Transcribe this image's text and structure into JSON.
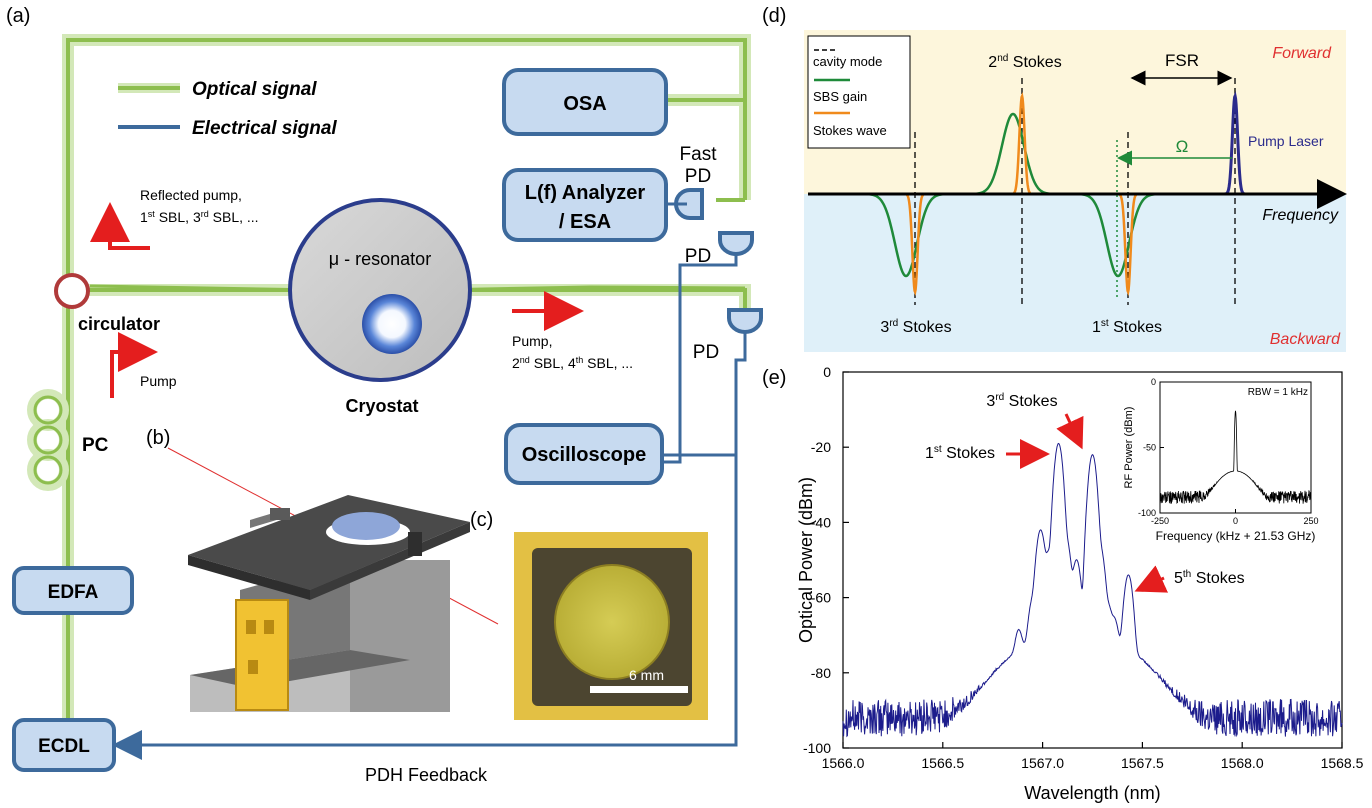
{
  "panel_a": {
    "label": "(a)",
    "legend": {
      "optical": "Optical signal",
      "electrical": "Electrical signal"
    },
    "colors": {
      "optical": "#8dbe4e",
      "optical_glow": "#d3e8b8",
      "electrical": "#3d6a9c",
      "box_fill": "#c7daf0",
      "box_stroke": "#3d6a9c",
      "arrow": "#e41e1e"
    },
    "boxes": {
      "osa": "OSA",
      "analyzer_line1": "L(f) Analyzer",
      "analyzer_line2": "/ ESA",
      "oscilloscope": "Oscilloscope",
      "edfa": "EDFA",
      "ecdl": "ECDL"
    },
    "fast_pd_line1": "Fast",
    "fast_pd_line2": "PD",
    "pd1": "PD",
    "pd2": "PD",
    "reflected_line1": "Reflected pump,",
    "reflected_line2_a": "1",
    "reflected_line2_b": "st",
    "reflected_line2_c": " SBL, 3",
    "reflected_line2_d": "rd",
    "reflected_line2_e": " SBL, ...",
    "pump_left": "Pump",
    "circulator": "circulator",
    "pc": "PC",
    "resonator": "μ - resonator",
    "cryostat": "Cryostat",
    "pump_right_line1": "Pump,",
    "pump_right_a": "2",
    "pump_right_b": "nd",
    "pump_right_c": " SBL, 4",
    "pump_right_d": "th",
    "pump_right_e": " SBL, ...",
    "pdh_feedback": "PDH Feedback"
  },
  "panel_b": {
    "label": "(b)"
  },
  "panel_c": {
    "label": "(c)",
    "scale": "6 mm"
  },
  "panel_d": {
    "label": "(d)",
    "legend": {
      "cavity": "cavity mode",
      "gain": "SBS gain",
      "stokes": "Stokes wave"
    },
    "fsr": "FSR",
    "forward": "Forward",
    "backward": "Backward",
    "frequency": "Frequency",
    "omega": "Ω",
    "pump_laser": "Pump Laser",
    "s2": {
      "n": "2",
      "sup": "nd",
      "t": " Stokes"
    },
    "s3": {
      "n": "3",
      "sup": "rd",
      "t": " Stokes"
    },
    "s1": {
      "n": "1",
      "sup": "st",
      "t": " Stokes"
    },
    "colors": {
      "forward_bg": "#fdf6dc",
      "backward_bg": "#dff0f9",
      "gain": "#1f8a3a",
      "stokes": "#f08a1c",
      "pump": "#2b2b8c",
      "red_text": "#e03030"
    }
  },
  "panel_e": {
    "label": "(e)",
    "annotations": {
      "s1": {
        "n": "1",
        "sup": "st",
        "t": " Stokes"
      },
      "s3": {
        "n": "3",
        "sup": "rd",
        "t": " Stokes"
      },
      "s5": {
        "n": "5",
        "sup": "th",
        "t": " Stokes"
      }
    },
    "inset": {
      "rbw": "RBW = 1 kHz",
      "xlabel": "Frequency (kHz + 21.53 GHz)",
      "ylabel": "RF Power (dBm)"
    }
  },
  "chart_data": [
    {
      "type": "line",
      "title": "",
      "xlabel": "Wavelength (nm)",
      "ylabel": "Optical Power (dBm)",
      "xlim": [
        1566.0,
        1568.5
      ],
      "ylim": [
        -100,
        0
      ],
      "xticks": [
        "1566.0",
        "1566.5",
        "1567.0",
        "1567.5",
        "1568.0",
        "1568.5"
      ],
      "yticks": [
        "0",
        "-20",
        "-40",
        "-60",
        "-80",
        "-100"
      ],
      "grid": false,
      "line_color": "#1c1c8c",
      "noise_floor": -92,
      "noise_amplitude": 5,
      "peaks": [
        {
          "x": 1566.88,
          "y": -70,
          "w": 0.012
        },
        {
          "x": 1566.95,
          "y": -61,
          "w": 0.013
        },
        {
          "x": 1566.99,
          "y": -42,
          "w": 0.013
        },
        {
          "x": 1567.03,
          "y": -48,
          "w": 0.012
        },
        {
          "x": 1567.08,
          "y": -19,
          "w": 0.012
        },
        {
          "x": 1567.12,
          "y": -45,
          "w": 0.013
        },
        {
          "x": 1567.17,
          "y": -50,
          "w": 0.013
        },
        {
          "x": 1567.25,
          "y": -22,
          "w": 0.012
        },
        {
          "x": 1567.29,
          "y": -47,
          "w": 0.013
        },
        {
          "x": 1567.33,
          "y": -63,
          "w": 0.012
        },
        {
          "x": 1567.36,
          "y": -67,
          "w": 0.012
        },
        {
          "x": 1567.43,
          "y": -54,
          "w": 0.013
        }
      ],
      "envelope": {
        "center": 1567.16,
        "sigma": 0.17,
        "rise": 24
      }
    },
    {
      "type": "line",
      "title": "",
      "xlabel": "Frequency (kHz + 21.53 GHz)",
      "ylabel": "RF Power (dBm)",
      "xlim": [
        -250,
        250
      ],
      "ylim": [
        -100,
        0
      ],
      "xticks": [
        "-250",
        "0",
        "250"
      ],
      "yticks": [
        "0",
        "-50",
        "-100"
      ],
      "grid": false,
      "line_color": "#000000",
      "noise_floor": -88,
      "noise_amplitude": 5,
      "peak": {
        "x": 0,
        "y": -22
      },
      "pedestal": {
        "sigma": 30,
        "rise": 20
      }
    }
  ]
}
